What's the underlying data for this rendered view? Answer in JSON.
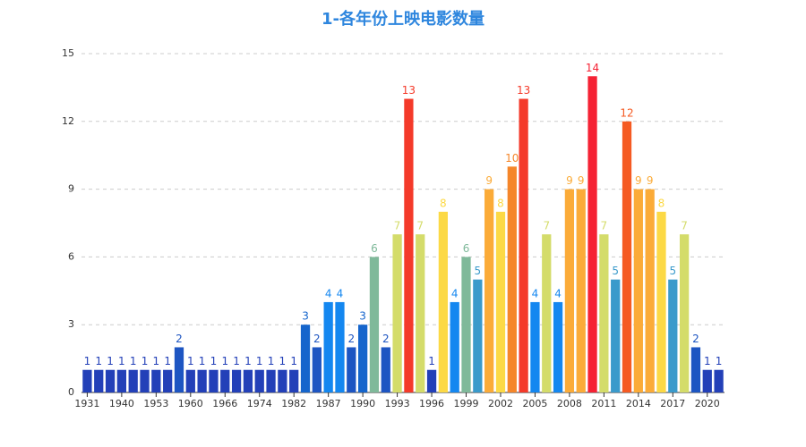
{
  "chart_data": {
    "type": "bar",
    "title": "1-各年份上映电影数量",
    "categories": [
      "1931",
      null,
      null,
      "1940",
      null,
      null,
      "1953",
      null,
      null,
      "1960",
      null,
      null,
      "1966",
      null,
      null,
      "1974",
      null,
      null,
      "1982",
      null,
      null,
      "1987",
      null,
      null,
      "1990",
      null,
      null,
      "1993",
      null,
      null,
      "1996",
      null,
      null,
      "1999",
      null,
      null,
      "2002",
      null,
      null,
      "2005",
      null,
      null,
      "2008",
      null,
      null,
      "2011",
      null,
      null,
      "2014",
      null,
      null,
      "2017",
      null,
      null,
      "2020",
      null
    ],
    "values": [
      1,
      1,
      1,
      1,
      1,
      1,
      1,
      1,
      2,
      1,
      1,
      1,
      1,
      1,
      1,
      1,
      1,
      1,
      1,
      3,
      2,
      4,
      4,
      2,
      3,
      6,
      2,
      7,
      13,
      7,
      1,
      8,
      4,
      6,
      5,
      9,
      8,
      10,
      13,
      4,
      7,
      4,
      9,
      9,
      14,
      7,
      5,
      12,
      9,
      9,
      8,
      5,
      7,
      2,
      1,
      1
    ],
    "colors": [
      "#2340b8",
      "#2340b8",
      "#2340b8",
      "#2340b8",
      "#2340b8",
      "#2340b8",
      "#2340b8",
      "#2340b8",
      "#1d55c2",
      "#2340b8",
      "#2340b8",
      "#2340b8",
      "#2340b8",
      "#2340b8",
      "#2340b8",
      "#2340b8",
      "#2340b8",
      "#2340b8",
      "#2340b8",
      "#1565cc",
      "#1d55c2",
      "#1487f0",
      "#1487f0",
      "#1d55c2",
      "#1565cc",
      "#7fb99a",
      "#1d55c2",
      "#d4dc6a",
      "#f43a2a",
      "#d4dc6a",
      "#2340b8",
      "#fcd945",
      "#1487f0",
      "#7fb99a",
      "#3a9acb",
      "#fbab38",
      "#fcd945",
      "#f5862a",
      "#f43a2a",
      "#1487f0",
      "#d4dc6a",
      "#1487f0",
      "#fbab38",
      "#fbab38",
      "#f52234",
      "#d4dc6a",
      "#3a9acb",
      "#f55a22",
      "#fbab38",
      "#fbab38",
      "#fcd945",
      "#3a9acb",
      "#d4dc6a",
      "#1d55c2",
      "#2340b8",
      "#2340b8"
    ],
    "ylim": [
      0,
      15
    ],
    "yticks": [
      0,
      3,
      6,
      9,
      12,
      15
    ],
    "grid": true
  }
}
